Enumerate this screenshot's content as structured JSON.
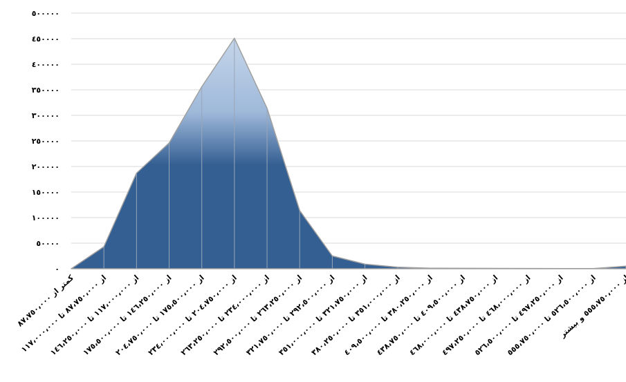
{
  "chart_data": {
    "type": "area",
    "title": "",
    "xlabel": "",
    "ylabel": "",
    "ylim": [
      0,
      500000
    ],
    "y_ticks": [
      "٠",
      "٥٠٠٠٠",
      "١٠٠٠٠٠",
      "١٥٠٠٠٠",
      "٢٠٠٠٠٠",
      "٢٥٠٠٠٠",
      "٣٠٠٠٠٠",
      "٣٥٠٠٠٠",
      "٤٠٠٠٠٠",
      "٤٥٠٠٠٠",
      "٥٠٠٠٠٠"
    ],
    "y_tick_values": [
      0,
      50000,
      100000,
      150000,
      200000,
      250000,
      300000,
      350000,
      400000,
      450000,
      500000
    ],
    "categories": [
      "کمتر از ٨٧،٧٥٠،٠٠٠",
      "از ٨٧،٧٥٠،٠٠٠ تا ١١٧،٠٠٠،٠٠٠",
      "از ١١٧،٠٠٠،٠٠٠ تا ١٤٦،٢٥٠،٠٠٠",
      "از ١٤٦،٢٥٠،٠٠٠ تا ١٧٥،٥٠٠،٠٠٠",
      "از ١٧٥،٥٠٠،٠٠٠ تا ٢٠٤،٧٥٠،٠٠٠",
      "از ٢٠٤،٧٥٠،٠٠٠ تا ٢٣٤،٠٠٠،٠٠٠",
      "از ٢٣٤،٠٠٠،٠٠٠ تا ٢٦٣،٢٥٠،٠٠٠",
      "از ٢٦٣،٢٥٠،٠٠٠ تا ٢٩٢،٥٠٠،٠٠٠",
      "از ٢٩٢،٥٠٠،٠٠٠ تا ٣٢١،٧٥٠،٠٠٠",
      "از ٣٢١،٧٥٠،٠٠٠ تا ٣٥١،٠٠٠،٠٠٠",
      "از ٣٥١،٠٠٠،٠٠٠ تا ٣٨٠،٢٥٠،٠٠٠",
      "از ٣٨٠،٢٥٠،٠٠٠ تا ٤٠٩،٥٠٠،٠٠٠",
      "از ٤٠٩،٥٠٠،٠٠٠ تا ٤٣٨،٧٥٠،٠٠٠",
      "از ٤٣٨،٧٥٠،٠٠٠ تا ٤٦٨،٠٠٠،٠٠٠",
      "از ٤٦٨،٠٠٠،٠٠٠ تا ٤٩٧،٢٥٠،٠٠٠",
      "از ٤٩٧،٢٥٠،٠٠٠ تا ٥٢٦،٥٠٠،٠٠٠",
      "از ٥٢٦،٥٠٠،٠٠٠ تا ٥٥٥،٧٥٠،٠٠٠",
      "از ٥٥٥،٧٥٠،٠٠٠ و بیشتر"
    ],
    "values": [
      0,
      43000,
      187000,
      246000,
      356000,
      451000,
      314000,
      114000,
      25000,
      9000,
      3000,
      1000,
      800,
      600,
      500,
      400,
      400,
      5000
    ],
    "grid": true,
    "legend": "none",
    "colors": {
      "fill_top": "#c5d6ea",
      "fill_mid": "#9fb9da",
      "fill_bottom": "#345f92",
      "outline": "#a0a0a0"
    }
  }
}
